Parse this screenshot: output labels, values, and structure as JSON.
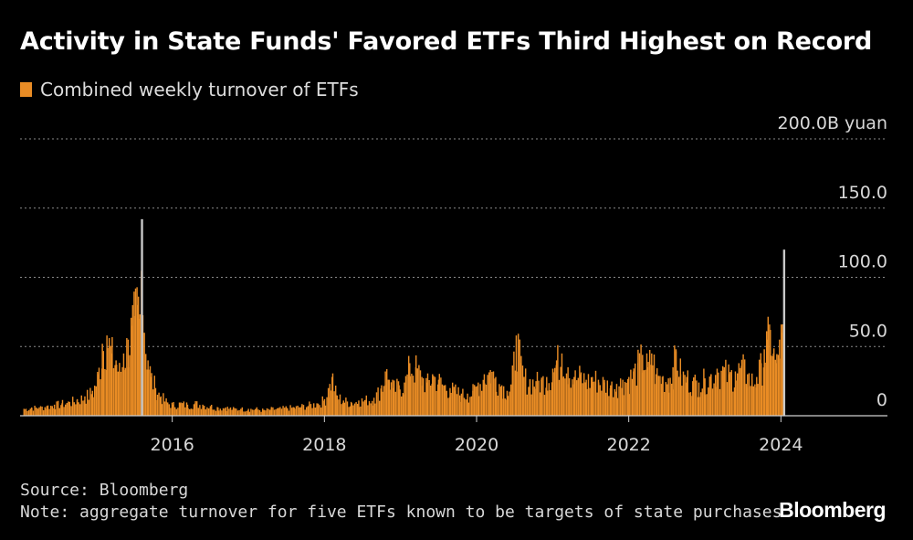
{
  "title": "Activity in State Funds' Favored ETFs Third Highest on Record",
  "source": "Source: Bloomberg",
  "note": "Note: aggregate turnover for five ETFs known to be targets of state purchases",
  "brand": "Bloomberg",
  "colors": {
    "bar": "#e98c25",
    "highlight": "#c8c8c8",
    "grid": "#8a8a8a",
    "axis": "#d0d0d0",
    "background": "#000000"
  },
  "chart_data": {
    "type": "bar",
    "title": "Activity in State Funds' Favored ETFs Third Highest on Record",
    "series": [
      {
        "name": "Combined weekly turnover of ETFs",
        "color": "#e98c25"
      }
    ],
    "ylim": [
      0,
      200
    ],
    "yticks": [
      {
        "value": 0,
        "label": "0"
      },
      {
        "value": 50,
        "label": "50.0"
      },
      {
        "value": 100,
        "label": "100.0"
      },
      {
        "value": 150,
        "label": "150.0"
      },
      {
        "value": 200,
        "label": "200.0B yuan"
      }
    ],
    "xlim": [
      2014.0,
      2025.4
    ],
    "xticks": [
      {
        "value": 2016,
        "label": "2016"
      },
      {
        "value": 2018,
        "label": "2018"
      },
      {
        "value": 2020,
        "label": "2020"
      },
      {
        "value": 2022,
        "label": "2022"
      },
      {
        "value": 2024,
        "label": "2024"
      }
    ],
    "grid": true,
    "points": [
      [
        2014.05,
        5
      ],
      [
        2014.15,
        6
      ],
      [
        2014.25,
        6
      ],
      [
        2014.35,
        7
      ],
      [
        2014.45,
        8
      ],
      [
        2014.55,
        9
      ],
      [
        2014.65,
        10
      ],
      [
        2014.75,
        12
      ],
      [
        2014.85,
        14
      ],
      [
        2014.95,
        18
      ],
      [
        2015.02,
        30
      ],
      [
        2015.08,
        52
      ],
      [
        2015.14,
        58
      ],
      [
        2015.2,
        45
      ],
      [
        2015.26,
        40
      ],
      [
        2015.3,
        32
      ],
      [
        2015.36,
        45
      ],
      [
        2015.42,
        55
      ],
      [
        2015.46,
        65
      ],
      [
        2015.5,
        72
      ],
      [
        2015.54,
        80
      ],
      [
        2015.57,
        70
      ],
      [
        2015.6,
        142
      ],
      [
        2015.63,
        60
      ],
      [
        2015.68,
        40
      ],
      [
        2015.72,
        28
      ],
      [
        2015.78,
        20
      ],
      [
        2015.85,
        14
      ],
      [
        2015.92,
        10
      ],
      [
        2016.0,
        8
      ],
      [
        2016.1,
        9
      ],
      [
        2016.2,
        8
      ],
      [
        2016.3,
        9
      ],
      [
        2016.4,
        8
      ],
      [
        2016.5,
        7
      ],
      [
        2016.6,
        6
      ],
      [
        2016.7,
        6
      ],
      [
        2016.8,
        5
      ],
      [
        2016.9,
        5
      ],
      [
        2017.0,
        5
      ],
      [
        2017.1,
        5
      ],
      [
        2017.2,
        4
      ],
      [
        2017.3,
        5
      ],
      [
        2017.4,
        5
      ],
      [
        2017.5,
        6
      ],
      [
        2017.6,
        6
      ],
      [
        2017.7,
        7
      ],
      [
        2017.8,
        8
      ],
      [
        2017.9,
        9
      ],
      [
        2018.0,
        12
      ],
      [
        2018.05,
        20
      ],
      [
        2018.1,
        28
      ],
      [
        2018.15,
        15
      ],
      [
        2018.25,
        11
      ],
      [
        2018.35,
        10
      ],
      [
        2018.45,
        11
      ],
      [
        2018.55,
        12
      ],
      [
        2018.65,
        13
      ],
      [
        2018.75,
        22
      ],
      [
        2018.8,
        32
      ],
      [
        2018.85,
        26
      ],
      [
        2018.9,
        20
      ],
      [
        2018.98,
        22
      ],
      [
        2019.05,
        24
      ],
      [
        2019.12,
        38
      ],
      [
        2019.2,
        35
      ],
      [
        2019.28,
        28
      ],
      [
        2019.35,
        24
      ],
      [
        2019.42,
        30
      ],
      [
        2019.5,
        26
      ],
      [
        2019.58,
        22
      ],
      [
        2019.65,
        20
      ],
      [
        2019.72,
        18
      ],
      [
        2019.8,
        16
      ],
      [
        2019.88,
        16
      ],
      [
        2019.95,
        18
      ],
      [
        2020.02,
        24
      ],
      [
        2020.1,
        30
      ],
      [
        2020.18,
        33
      ],
      [
        2020.25,
        28
      ],
      [
        2020.33,
        22
      ],
      [
        2020.4,
        18
      ],
      [
        2020.45,
        22
      ],
      [
        2020.52,
        58
      ],
      [
        2020.57,
        38
      ],
      [
        2020.62,
        28
      ],
      [
        2020.7,
        26
      ],
      [
        2020.78,
        25
      ],
      [
        2020.85,
        26
      ],
      [
        2020.92,
        28
      ],
      [
        2021.0,
        34
      ],
      [
        2021.05,
        40
      ],
      [
        2021.12,
        45
      ],
      [
        2021.2,
        35
      ],
      [
        2021.28,
        28
      ],
      [
        2021.36,
        30
      ],
      [
        2021.44,
        26
      ],
      [
        2021.52,
        28
      ],
      [
        2021.6,
        26
      ],
      [
        2021.68,
        24
      ],
      [
        2021.76,
        22
      ],
      [
        2021.84,
        23
      ],
      [
        2021.92,
        26
      ],
      [
        2022.0,
        28
      ],
      [
        2022.06,
        32
      ],
      [
        2022.12,
        38
      ],
      [
        2022.18,
        44
      ],
      [
        2022.24,
        35
      ],
      [
        2022.3,
        45
      ],
      [
        2022.36,
        30
      ],
      [
        2022.44,
        28
      ],
      [
        2022.52,
        27
      ],
      [
        2022.58,
        35
      ],
      [
        2022.62,
        48
      ],
      [
        2022.68,
        30
      ],
      [
        2022.76,
        28
      ],
      [
        2022.84,
        25
      ],
      [
        2022.92,
        24
      ],
      [
        2023.0,
        27
      ],
      [
        2023.08,
        30
      ],
      [
        2023.16,
        34
      ],
      [
        2023.24,
        33
      ],
      [
        2023.32,
        30
      ],
      [
        2023.4,
        32
      ],
      [
        2023.48,
        36
      ],
      [
        2023.56,
        30
      ],
      [
        2023.62,
        26
      ],
      [
        2023.68,
        28
      ],
      [
        2023.74,
        38
      ],
      [
        2023.78,
        48
      ],
      [
        2023.82,
        55
      ],
      [
        2023.86,
        62
      ],
      [
        2023.9,
        45
      ],
      [
        2023.94,
        38
      ],
      [
        2023.98,
        55
      ],
      [
        2024.02,
        60
      ],
      [
        2024.04,
        120
      ]
    ],
    "highlighted_points": [
      2015.6,
      2024.04
    ]
  }
}
